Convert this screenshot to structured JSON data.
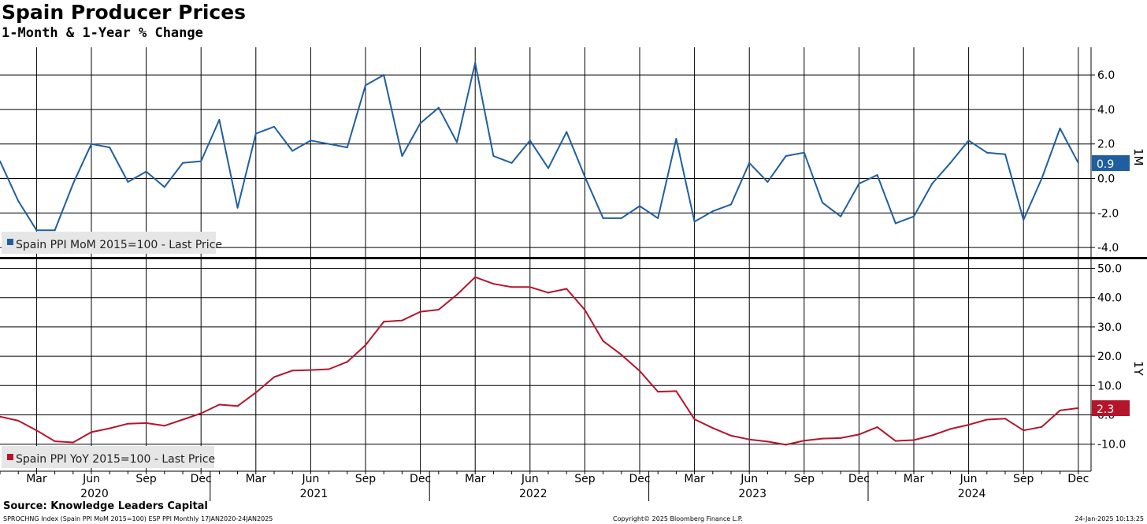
{
  "title": "Spain Producer Prices",
  "subtitle": "1-Month & 1-Year % Change",
  "source": "Source: Knowledge Leaders Capital",
  "footer": {
    "left": "SPROCHNG Index (Spain PPI MoM 2015=100) ESP PPI  Monthly 17JAN2020-24JAN2025",
    "center": "Copyright© 2025 Bloomberg Finance L.P.",
    "right": "24-Jan-2025 10:13:25"
  },
  "x_axis": {
    "month_labels": [
      "Mar",
      "Jun",
      "Sep",
      "Dec",
      "Mar",
      "Jun",
      "Sep",
      "Dec",
      "Mar",
      "Jun",
      "Sep",
      "Dec",
      "Mar",
      "Jun",
      "Sep",
      "Dec",
      "Mar",
      "Jun",
      "Sep",
      "Dec"
    ],
    "year_labels": [
      "2020",
      "2021",
      "2022",
      "2023",
      "2024"
    ]
  },
  "chart_data": [
    {
      "type": "line",
      "panel_label": "1M",
      "legend": "Spain PPI MoM 2015=100 - Last Price",
      "color": "#1f5fa0",
      "last_value_label": "0.9",
      "ylim": [
        -4.6,
        7.6
      ],
      "yticks": [
        -4.0,
        -2.0,
        0.0,
        2.0,
        4.0,
        6.0
      ],
      "ytick_labels": [
        "-4.0",
        "-2.0",
        "0.0",
        "2.0",
        "4.0",
        "6.0"
      ],
      "x": [
        "2020-01",
        "2020-02",
        "2020-03",
        "2020-04",
        "2020-05",
        "2020-06",
        "2020-07",
        "2020-08",
        "2020-09",
        "2020-10",
        "2020-11",
        "2020-12",
        "2021-01",
        "2021-02",
        "2021-03",
        "2021-04",
        "2021-05",
        "2021-06",
        "2021-07",
        "2021-08",
        "2021-09",
        "2021-10",
        "2021-11",
        "2021-12",
        "2022-01",
        "2022-02",
        "2022-03",
        "2022-04",
        "2022-05",
        "2022-06",
        "2022-07",
        "2022-08",
        "2022-09",
        "2022-10",
        "2022-11",
        "2022-12",
        "2023-01",
        "2023-02",
        "2023-03",
        "2023-04",
        "2023-05",
        "2023-06",
        "2023-07",
        "2023-08",
        "2023-09",
        "2023-10",
        "2023-11",
        "2023-12",
        "2024-01",
        "2024-02",
        "2024-03",
        "2024-04",
        "2024-05",
        "2024-06",
        "2024-07",
        "2024-08",
        "2024-09",
        "2024-10",
        "2024-11",
        "2024-12"
      ],
      "series": [
        {
          "name": "Spain PPI MoM 2015=100 - Last Price",
          "values": [
            1.0,
            -1.3,
            -3.0,
            -3.0,
            -0.3,
            2.0,
            1.8,
            -0.2,
            0.4,
            -0.5,
            0.9,
            1.0,
            3.4,
            -1.7,
            2.6,
            3.0,
            1.6,
            2.2,
            2.0,
            1.8,
            5.4,
            6.0,
            1.3,
            3.2,
            4.1,
            2.1,
            6.7,
            1.3,
            0.9,
            2.2,
            0.6,
            2.7,
            0.1,
            -2.3,
            -2.3,
            -1.6,
            -2.3,
            2.3,
            -2.5,
            -1.9,
            -1.5,
            0.9,
            -0.2,
            1.3,
            1.5,
            -1.4,
            -2.2,
            -0.3,
            0.2,
            -2.6,
            -2.2,
            -0.3,
            0.9,
            2.2,
            1.5,
            1.4,
            -2.4,
            0.0,
            2.9,
            0.9
          ]
        }
      ]
    },
    {
      "type": "line",
      "panel_label": "1Y",
      "legend": "Spain PPI YoY 2015=100 - Last Price",
      "color": "#b5152b",
      "last_value_label": "2.3",
      "ylim": [
        -20,
        52
      ],
      "yticks": [
        -10.0,
        0.0,
        10.0,
        20.0,
        30.0,
        40.0,
        50.0
      ],
      "ytick_labels": [
        "-10.0",
        "0.0",
        "10.0",
        "20.0",
        "30.0",
        "40.0",
        "50.0"
      ],
      "x": [
        "2020-01",
        "2020-02",
        "2020-03",
        "2020-04",
        "2020-05",
        "2020-06",
        "2020-07",
        "2020-08",
        "2020-09",
        "2020-10",
        "2020-11",
        "2020-12",
        "2021-01",
        "2021-02",
        "2021-03",
        "2021-04",
        "2021-05",
        "2021-06",
        "2021-07",
        "2021-08",
        "2021-09",
        "2021-10",
        "2021-11",
        "2021-12",
        "2022-01",
        "2022-02",
        "2022-03",
        "2022-04",
        "2022-05",
        "2022-06",
        "2022-07",
        "2022-08",
        "2022-09",
        "2022-10",
        "2022-11",
        "2022-12",
        "2023-01",
        "2023-02",
        "2023-03",
        "2023-04",
        "2023-05",
        "2023-06",
        "2023-07",
        "2023-08",
        "2023-09",
        "2023-10",
        "2023-11",
        "2023-12",
        "2024-01",
        "2024-02",
        "2024-03",
        "2024-04",
        "2024-05",
        "2024-06",
        "2024-07",
        "2024-08",
        "2024-09",
        "2024-10",
        "2024-11",
        "2024-12"
      ],
      "series": [
        {
          "name": "Spain PPI YoY 2015=100 - Last Price",
          "values": [
            -0.6,
            -2.0,
            -5.3,
            -9.0,
            -9.4,
            -5.9,
            -4.6,
            -3.0,
            -2.8,
            -3.7,
            -1.6,
            0.5,
            3.5,
            3.0,
            7.6,
            12.9,
            15.1,
            15.3,
            15.6,
            18.1,
            23.8,
            31.8,
            32.2,
            35.2,
            35.9,
            41.0,
            47.0,
            44.7,
            43.6,
            43.6,
            41.7,
            43.0,
            35.8,
            25.2,
            20.5,
            15.0,
            7.9,
            8.1,
            -1.5,
            -4.5,
            -7.1,
            -8.4,
            -9.1,
            -10.2,
            -8.8,
            -8.1,
            -7.9,
            -6.7,
            -4.2,
            -8.9,
            -8.6,
            -7.0,
            -4.8,
            -3.4,
            -1.6,
            -1.3,
            -5.3,
            -4.1,
            1.5,
            2.3
          ]
        }
      ]
    }
  ]
}
